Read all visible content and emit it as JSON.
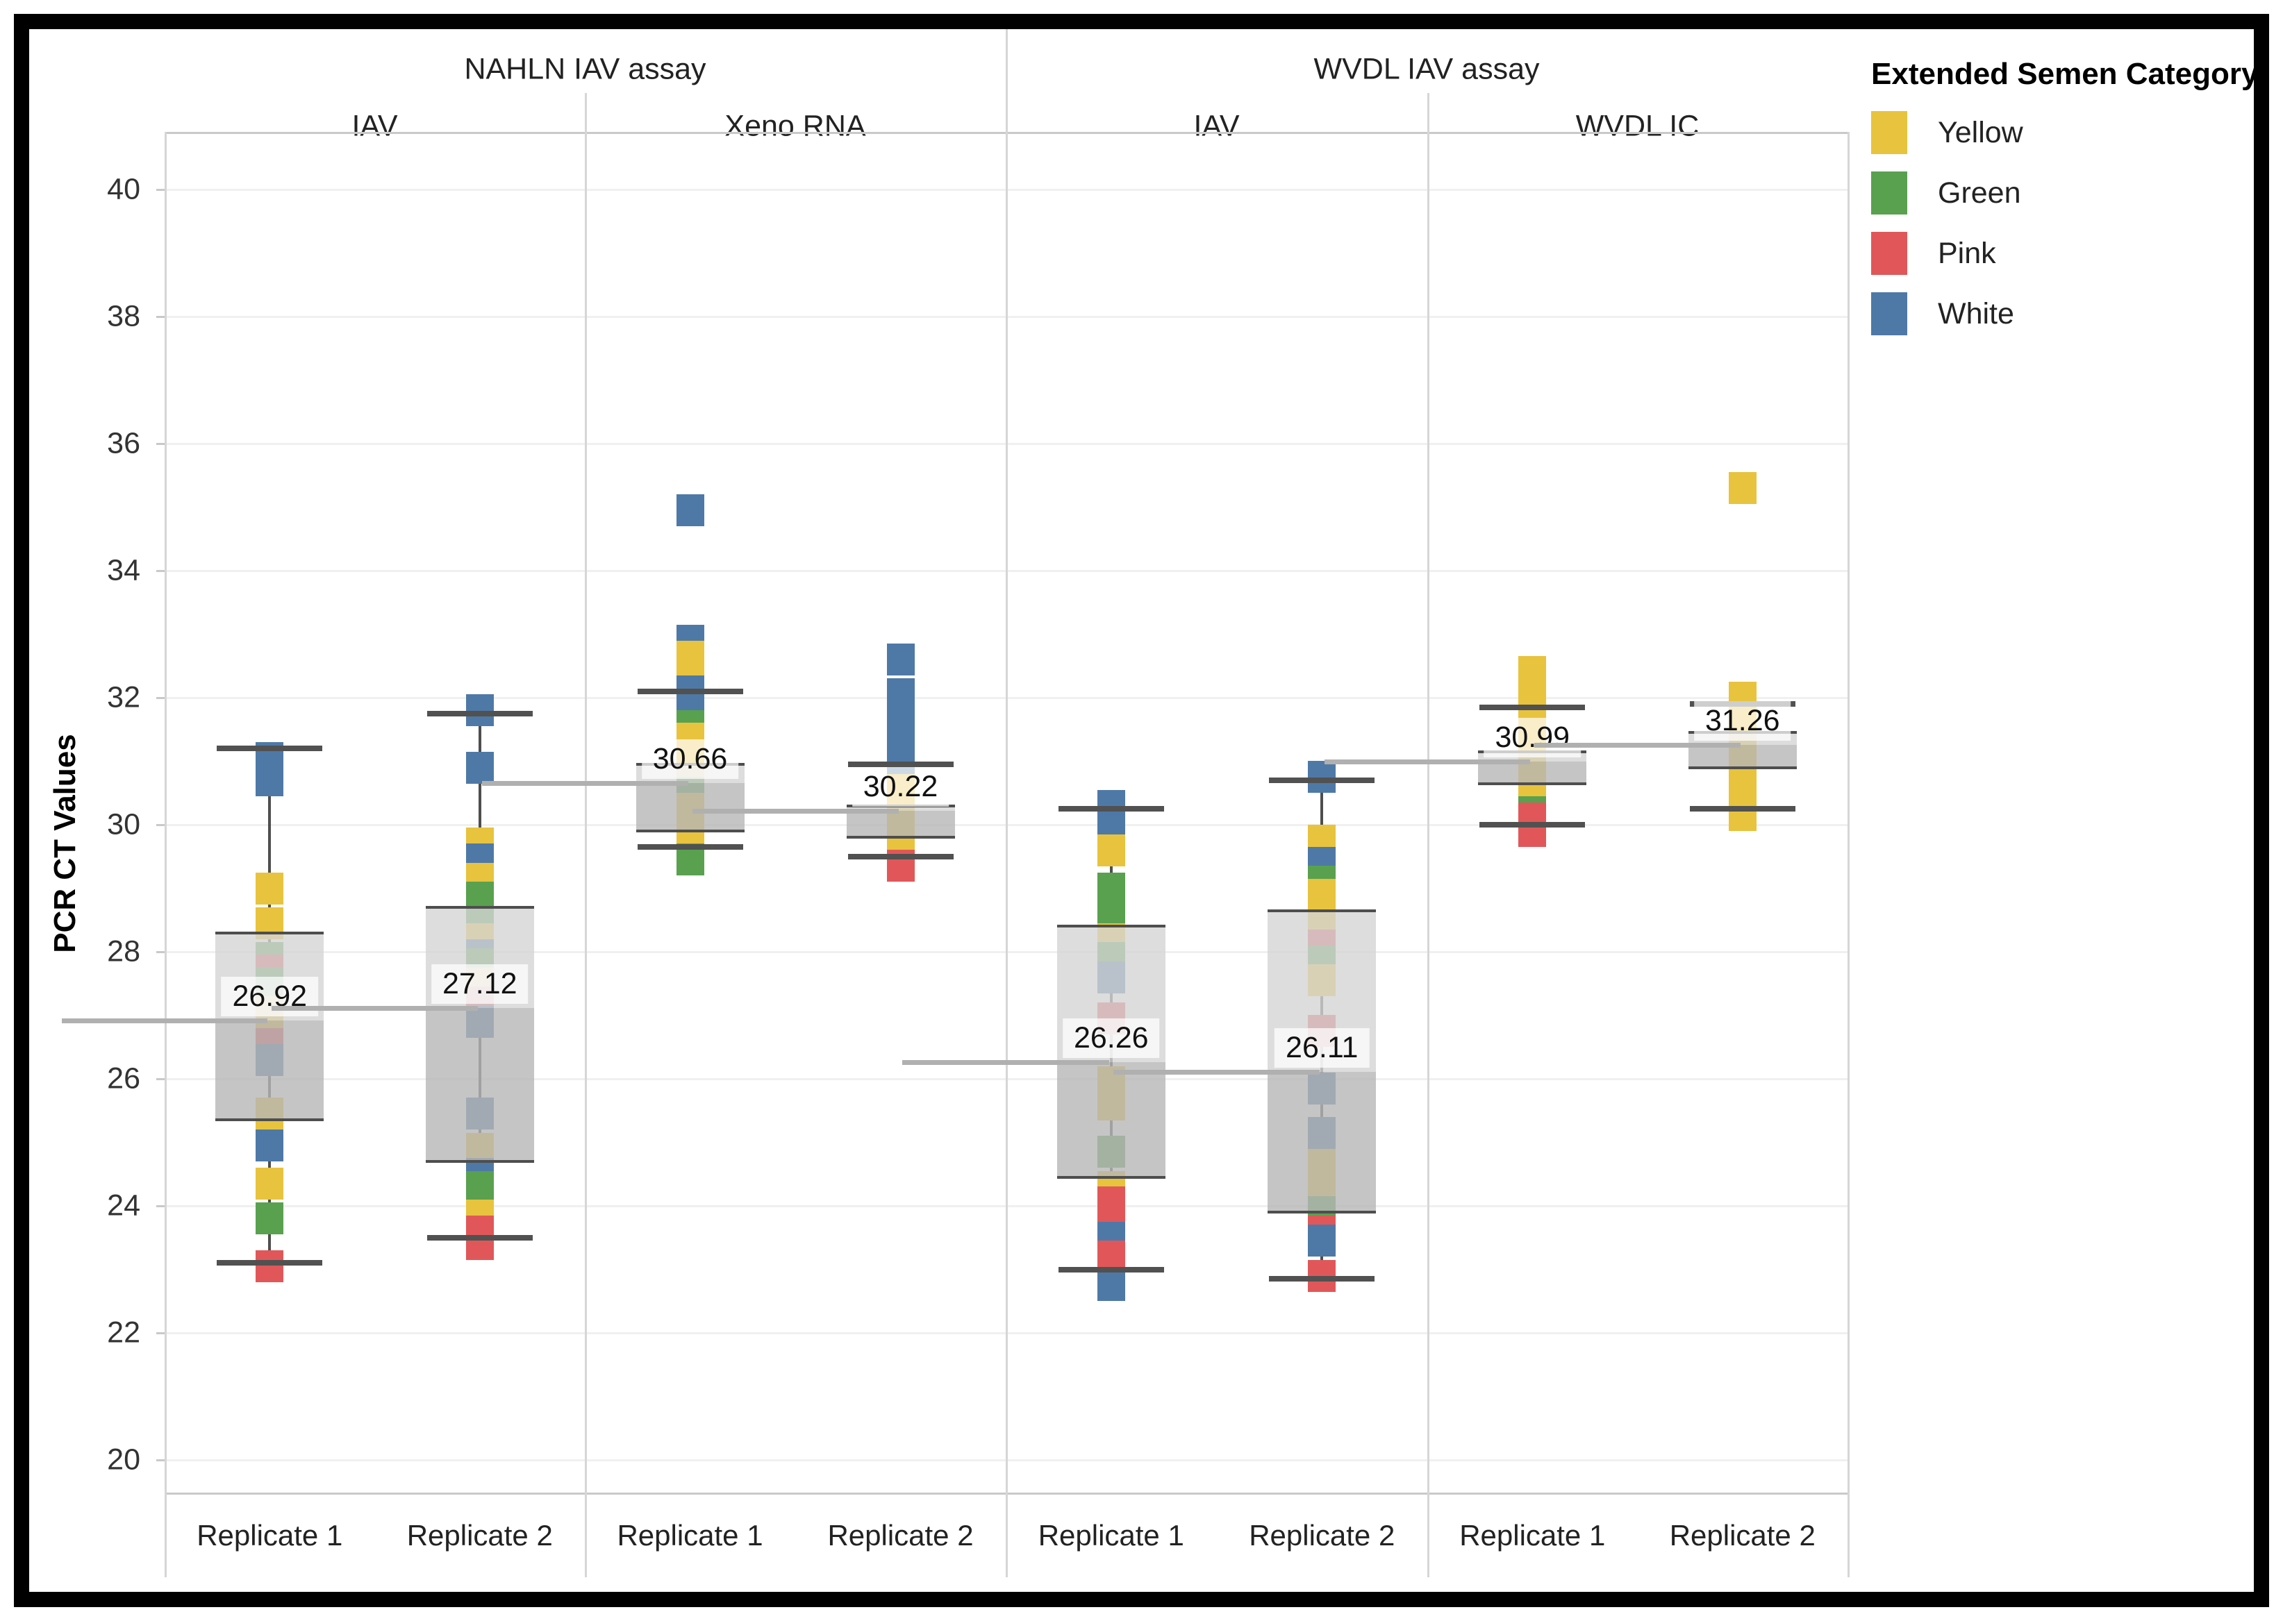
{
  "legend": {
    "title": "Extended Semen Category",
    "items": [
      {
        "label": "Yellow",
        "color": "#E8C33D"
      },
      {
        "label": "Green",
        "color": "#59A14F"
      },
      {
        "label": "Pink",
        "color": "#E15759"
      },
      {
        "label": "White",
        "color": "#4E79A7"
      }
    ]
  },
  "chart_data": {
    "type": "boxplot",
    "ylabel": "PCR CT Values",
    "ylim": [
      19.5,
      40.9
    ],
    "yticks": [
      20,
      22,
      24,
      26,
      28,
      30,
      32,
      34,
      36,
      38,
      40
    ],
    "grid": "horizontal",
    "legend_position": "top-right",
    "category_colors": {
      "Yellow": "#E8C33D",
      "Green": "#59A14F",
      "Pink": "#E15759",
      "White": "#4E79A7"
    },
    "assay_headers": [
      {
        "label": "NAHLN IAV assay",
        "panels": [
          0,
          1
        ]
      },
      {
        "label": "WVDL IAV assay",
        "panels": [
          2,
          3
        ]
      }
    ],
    "panels": [
      {
        "assay": "NAHLN IAV assay",
        "test": "IAV",
        "columns": [
          {
            "label": "Replicate 1",
            "mean": 26.92,
            "mean_label": "26.92",
            "q1": 25.35,
            "q3": 28.3,
            "whisker_low": 23.1,
            "whisker_high": 31.2,
            "points": [
              [
                "White",
                31.05
              ],
              [
                "White",
                30.7
              ],
              [
                "Yellow",
                29.0
              ],
              [
                "Yellow",
                28.45
              ],
              [
                "Green",
                27.9
              ],
              [
                "Pink",
                27.7
              ],
              [
                "Green",
                27.5
              ],
              [
                "Yellow",
                27.05
              ],
              [
                "Pink",
                26.55
              ],
              [
                "White",
                26.3
              ],
              [
                "Yellow",
                25.45
              ],
              [
                "White",
                24.95
              ],
              [
                "Yellow",
                24.35
              ],
              [
                "Green",
                23.8
              ],
              [
                "Pink",
                23.05
              ]
            ]
          },
          {
            "label": "Replicate 2",
            "mean": 27.12,
            "mean_label": "27.12",
            "q1": 24.7,
            "q3": 28.7,
            "whisker_low": 23.5,
            "whisker_high": 31.75,
            "points": [
              [
                "White",
                31.8
              ],
              [
                "White",
                30.9
              ],
              [
                "Yellow",
                29.7
              ],
              [
                "White",
                29.45
              ],
              [
                "Yellow",
                29.15
              ],
              [
                "Green",
                28.85
              ],
              [
                "Green",
                28.6
              ],
              [
                "Yellow",
                28.2
              ],
              [
                "White",
                27.95
              ],
              [
                "Green",
                27.8
              ],
              [
                "Yellow",
                27.5
              ],
              [
                "Pink",
                27.2
              ],
              [
                "White",
                26.9
              ],
              [
                "White",
                25.45
              ],
              [
                "Yellow",
                24.9
              ],
              [
                "White",
                24.5
              ],
              [
                "Green",
                24.3
              ],
              [
                "Yellow",
                23.85
              ],
              [
                "Pink",
                23.6
              ],
              [
                "Pink",
                23.4
              ]
            ]
          }
        ]
      },
      {
        "assay": "NAHLN IAV assay",
        "test": "Xeno RNA",
        "columns": [
          {
            "label": "Replicate 1",
            "mean": 30.66,
            "mean_label": "30.66",
            "q1": 29.9,
            "q3": 30.95,
            "whisker_low": 29.65,
            "whisker_high": 32.1,
            "points": [
              [
                "White",
                34.95
              ],
              [
                "White",
                32.9
              ],
              [
                "Yellow",
                32.65
              ],
              [
                "Yellow",
                32.4
              ],
              [
                "White",
                32.1
              ],
              [
                "White",
                31.85
              ],
              [
                "Green",
                31.55
              ],
              [
                "Yellow",
                31.35
              ],
              [
                "Yellow",
                31.1
              ],
              [
                "Yellow",
                30.85
              ],
              [
                "Yellow",
                30.6
              ],
              [
                "Green",
                30.5
              ],
              [
                "Yellow",
                30.25
              ],
              [
                "Yellow",
                30.0
              ],
              [
                "Yellow",
                29.8
              ],
              [
                "Green",
                29.45
              ]
            ]
          },
          {
            "label": "Replicate 2",
            "mean": 30.22,
            "mean_label": "30.22",
            "q1": 29.8,
            "q3": 30.3,
            "whisker_low": 29.5,
            "whisker_high": 30.95,
            "points": [
              [
                "White",
                32.6
              ],
              [
                "White",
                32.05
              ],
              [
                "White",
                31.65
              ],
              [
                "White",
                31.3
              ],
              [
                "White",
                31.0
              ],
              [
                "White",
                30.8
              ],
              [
                "Yellow",
                30.55
              ],
              [
                "Yellow",
                30.3
              ],
              [
                "Yellow",
                29.95
              ],
              [
                "Yellow",
                29.6
              ],
              [
                "Pink",
                29.35
              ]
            ]
          }
        ]
      },
      {
        "assay": "WVDL IAV assay",
        "test": "IAV",
        "columns": [
          {
            "label": "Replicate 1",
            "mean": 26.26,
            "mean_label": "26.26",
            "q1": 24.45,
            "q3": 28.4,
            "whisker_low": 23.0,
            "whisker_high": 30.25,
            "points": [
              [
                "White",
                30.3
              ],
              [
                "White",
                29.9
              ],
              [
                "Yellow",
                29.6
              ],
              [
                "Green",
                29.0
              ],
              [
                "Green",
                28.6
              ],
              [
                "Yellow",
                28.2
              ],
              [
                "Green",
                27.9
              ],
              [
                "White",
                27.6
              ],
              [
                "Pink",
                26.95
              ],
              [
                "Yellow",
                25.95
              ],
              [
                "Yellow",
                25.6
              ],
              [
                "Green",
                24.85
              ],
              [
                "Yellow",
                24.3
              ],
              [
                "Pink",
                24.05
              ],
              [
                "Pink",
                23.75
              ],
              [
                "White",
                23.5
              ],
              [
                "Pink",
                23.2
              ],
              [
                "Pink",
                22.95
              ],
              [
                "White",
                22.75
              ]
            ]
          },
          {
            "label": "Replicate 2",
            "mean": 26.11,
            "mean_label": "26.11",
            "q1": 23.9,
            "q3": 28.65,
            "whisker_low": 22.85,
            "whisker_high": 30.7,
            "points": [
              [
                "White",
                30.75
              ],
              [
                "Yellow",
                29.75
              ],
              [
                "White",
                29.4
              ],
              [
                "Green",
                29.1
              ],
              [
                "Yellow",
                28.9
              ],
              [
                "Yellow",
                28.4
              ],
              [
                "Pink",
                28.1
              ],
              [
                "Green",
                27.85
              ],
              [
                "Yellow",
                27.55
              ],
              [
                "Pink",
                26.75
              ],
              [
                "White",
                25.85
              ],
              [
                "White",
                25.15
              ],
              [
                "Yellow",
                24.65
              ],
              [
                "Yellow",
                24.25
              ],
              [
                "Green",
                23.9
              ],
              [
                "Pink",
                23.6
              ],
              [
                "White",
                23.45
              ],
              [
                "Pink",
                22.9
              ]
            ]
          }
        ]
      },
      {
        "assay": "WVDL IAV assay",
        "test": "WVDL IC",
        "columns": [
          {
            "label": "Replicate 1",
            "mean": 30.99,
            "mean_label": "30.99",
            "q1": 30.65,
            "q3": 31.15,
            "whisker_low": 30.0,
            "whisker_high": 31.85,
            "points": [
              [
                "Yellow",
                32.4
              ],
              [
                "Yellow",
                31.9
              ],
              [
                "Yellow",
                31.6
              ],
              [
                "Yellow",
                31.25
              ],
              [
                "Yellow",
                30.85
              ],
              [
                "Yellow",
                30.5
              ],
              [
                "Yellow",
                30.3
              ],
              [
                "Green",
                30.2
              ],
              [
                "Pink",
                30.1
              ],
              [
                "Pink",
                29.9
              ]
            ]
          },
          {
            "label": "Replicate 2",
            "mean": 31.26,
            "mean_label": "31.26",
            "q1": 30.9,
            "q3": 31.45,
            "whisker_low": 30.25,
            "whisker_high": 31.9,
            "points": [
              [
                "Yellow",
                35.3
              ],
              [
                "Yellow",
                32.0
              ],
              [
                "Yellow",
                31.6
              ],
              [
                "Yellow",
                31.3
              ],
              [
                "Yellow",
                31.0
              ],
              [
                "Yellow",
                30.75
              ],
              [
                "Yellow",
                30.45
              ],
              [
                "Yellow",
                30.15
              ]
            ]
          }
        ]
      }
    ]
  }
}
